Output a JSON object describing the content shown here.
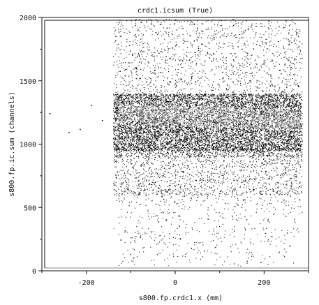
{
  "chart_data": {
    "type": "scatter",
    "title": "crdc1.icsum (True)",
    "xlabel": "s800.fp.crdc1.x (mm)",
    "ylabel": "s800.fp.ic.sum (channels)",
    "xlim": [
      -300,
      300
    ],
    "ylim": [
      0,
      2000
    ],
    "x_ticks": [
      -200,
      0,
      200
    ],
    "x_tick_labels": [
      "-200",
      "0",
      "200"
    ],
    "y_ticks": [
      0,
      500,
      1000,
      1500,
      2000
    ],
    "y_tick_labels": [
      "0",
      "500",
      "1000",
      "1500",
      "2000"
    ],
    "grid": false,
    "colors": {
      "points": "#111111",
      "band": "#7a7a7a",
      "frame": "#111111",
      "background": "#ffffff"
    },
    "regions": [
      {
        "name": "main",
        "x_range": [
          -140,
          285
        ],
        "y_range": [
          200,
          1400
        ],
        "density": "high"
      },
      {
        "name": "sparse-upper",
        "x_range": [
          -140,
          285
        ],
        "y_range": [
          1400,
          2000
        ],
        "density": "low"
      },
      {
        "name": "light-band",
        "x_range": [
          -130,
          285
        ],
        "y_range": [
          1120,
          1330
        ],
        "density": "high"
      }
    ],
    "outliers": [
      {
        "x": -283,
        "y": 1245
      },
      {
        "x": -240,
        "y": 1095
      },
      {
        "x": -215,
        "y": 1120
      },
      {
        "x": -190,
        "y": 1310
      },
      {
        "x": -165,
        "y": 1190
      }
    ]
  }
}
